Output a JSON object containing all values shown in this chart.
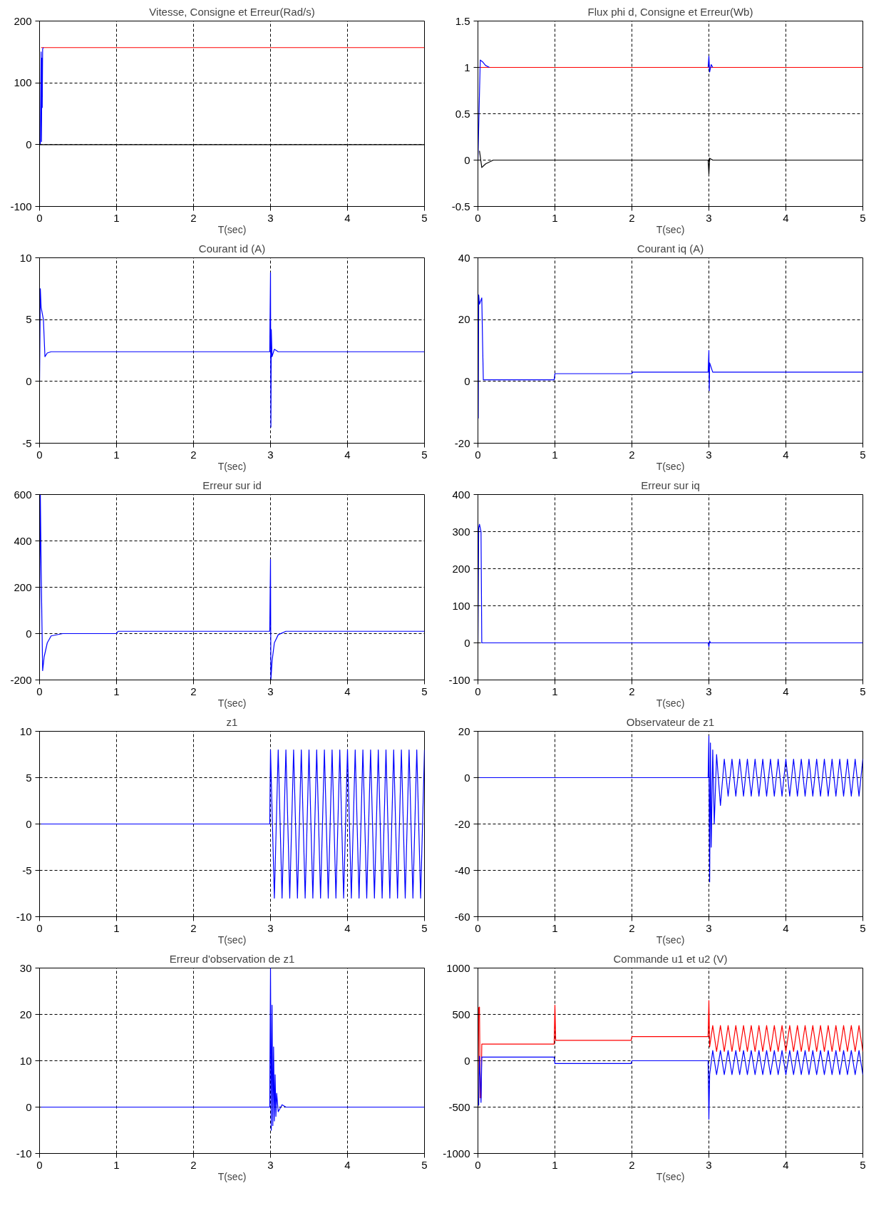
{
  "chart_data": [
    {
      "type": "line",
      "title": "Vitesse, Consigne et Erreur(Rad/s)",
      "xlabel": "T(sec)",
      "xlim": [
        0,
        5
      ],
      "xticks": [
        0,
        1,
        2,
        3,
        4,
        5
      ],
      "ylim": [
        -100,
        200
      ],
      "yticks": [
        -100,
        0,
        100,
        200
      ],
      "grid": true,
      "series": [
        {
          "color": "#ff0000",
          "x": [
            0.02,
            5
          ],
          "values": [
            157,
            157
          ]
        },
        {
          "color": "#000000",
          "x": [
            0,
            5
          ],
          "values": [
            0,
            0
          ]
        },
        {
          "color": "#0000ff",
          "x": [
            0.01,
            0.02,
            0.025,
            0.03,
            0.035,
            0.04,
            0.05
          ],
          "values": [
            0,
            150,
            5,
            140,
            60,
            155,
            157
          ]
        }
      ]
    },
    {
      "type": "line",
      "title": "Flux phi d, Consigne et Erreur(Wb)",
      "xlabel": "T(sec)",
      "xlim": [
        0,
        5
      ],
      "xticks": [
        0,
        1,
        2,
        3,
        4,
        5
      ],
      "ylim": [
        -0.5,
        1.5
      ],
      "yticks": [
        -0.5,
        0,
        0.5,
        1,
        1.5
      ],
      "grid": true,
      "series": [
        {
          "color": "#ff0000",
          "x": [
            0,
            5
          ],
          "values": [
            1,
            1
          ]
        },
        {
          "color": "#0000ff",
          "x": [
            0,
            0.03,
            0.06,
            0.1,
            0.15,
            1,
            2.99,
            3.0,
            3.01,
            3.03,
            3.05
          ],
          "values": [
            0,
            1.08,
            1.06,
            1.02,
            1.0,
            null,
            1,
            1.12,
            0.95,
            1.03,
            1.0
          ]
        },
        {
          "color": "#000000",
          "x": [
            0.02,
            0.05,
            0.1,
            0.2,
            2.99,
            3.0,
            3.01,
            3.05,
            5
          ],
          "values": [
            0.1,
            -0.08,
            -0.04,
            0,
            0,
            -0.15,
            0.02,
            0,
            0
          ]
        }
      ]
    },
    {
      "type": "line",
      "title": "Courant id (A)",
      "xlabel": "T(sec)",
      "xlim": [
        0,
        5
      ],
      "xticks": [
        0,
        1,
        2,
        3,
        4,
        5
      ],
      "ylim": [
        -5,
        10
      ],
      "yticks": [
        -5,
        0,
        5,
        10
      ],
      "grid": true,
      "series": [
        {
          "color": "#0000ff",
          "x": [
            0,
            0.01,
            0.02,
            0.05,
            0.07,
            0.1,
            0.15,
            2.99,
            3.0,
            3.005,
            3.01,
            3.02,
            3.05,
            3.1,
            5
          ],
          "values": [
            0,
            7.5,
            6,
            5,
            2,
            2.3,
            2.4,
            2.4,
            8.8,
            -3.7,
            4.2,
            2,
            2.6,
            2.4,
            2.4
          ]
        }
      ]
    },
    {
      "type": "line",
      "title": "Courant iq (A)",
      "xlabel": "T(sec)",
      "xlim": [
        0,
        5
      ],
      "xticks": [
        0,
        1,
        2,
        3,
        4,
        5
      ],
      "ylim": [
        -20,
        40
      ],
      "yticks": [
        -20,
        0,
        20,
        40
      ],
      "grid": true,
      "series": [
        {
          "color": "#0000ff",
          "x": [
            0.004,
            0.01,
            0.02,
            0.05,
            0.06,
            0.07,
            0.1,
            0.99,
            1.0,
            2.0,
            2.01,
            2.99,
            3.0,
            3.005,
            3.01,
            3.05,
            3.1,
            5
          ],
          "values": [
            -12,
            28,
            25,
            27,
            13,
            0.5,
            0.5,
            0.5,
            2.5,
            2.5,
            3,
            3,
            10,
            -3,
            6,
            3,
            3,
            3
          ]
        }
      ]
    },
    {
      "type": "line",
      "title": "Erreur sur id",
      "xlabel": "T(sec)",
      "xlim": [
        0,
        5
      ],
      "xticks": [
        0,
        1,
        2,
        3,
        4,
        5
      ],
      "ylim": [
        -200,
        600
      ],
      "yticks": [
        -200,
        0,
        200,
        400,
        600
      ],
      "grid": true,
      "series": [
        {
          "color": "#0000ff",
          "x": [
            0,
            0.01,
            0.02,
            0.04,
            0.06,
            0.1,
            0.15,
            0.3,
            1.0,
            1.02,
            2.99,
            3.0,
            3.005,
            3.02,
            3.05,
            3.1,
            3.2,
            5
          ],
          "values": [
            0,
            600,
            300,
            -160,
            -100,
            -40,
            -10,
            0,
            0,
            10,
            10,
            320,
            -200,
            -120,
            -40,
            -5,
            10,
            10
          ]
        }
      ]
    },
    {
      "type": "line",
      "title": "Erreur sur iq",
      "xlabel": "T(sec)",
      "xlim": [
        0,
        5
      ],
      "xticks": [
        0,
        1,
        2,
        3,
        4,
        5
      ],
      "ylim": [
        -100,
        400
      ],
      "yticks": [
        -100,
        0,
        100,
        200,
        300,
        400
      ],
      "grid": true,
      "series": [
        {
          "color": "#0000ff",
          "x": [
            0,
            0.01,
            0.02,
            0.04,
            0.05,
            0.06,
            2.99,
            3.0,
            3.01,
            3.02,
            5
          ],
          "values": [
            0,
            310,
            320,
            300,
            0,
            0,
            0,
            -10,
            5,
            0,
            0
          ]
        }
      ]
    },
    {
      "type": "line",
      "title": "z1",
      "xlabel": "T(sec)",
      "xlim": [
        0,
        5
      ],
      "xticks": [
        0,
        1,
        2,
        3,
        4,
        5
      ],
      "ylim": [
        -10,
        10
      ],
      "yticks": [
        -10,
        -5,
        0,
        5,
        10
      ],
      "grid": true,
      "series": [
        {
          "color": "#0000ff",
          "x": [
            0,
            2.99,
            3.0,
            3.05,
            3.1,
            3.15,
            3.2,
            3.25,
            3.3,
            3.35,
            3.4,
            3.45,
            3.5,
            3.55,
            3.6,
            3.65,
            3.7,
            3.75,
            3.8,
            3.85,
            3.9,
            3.95,
            4.0,
            4.05,
            4.1,
            4.15,
            4.2,
            4.25,
            4.3,
            4.35,
            4.4,
            4.45,
            4.5,
            4.55,
            4.6,
            4.65,
            4.7,
            4.75,
            4.8,
            4.85,
            4.9,
            4.95,
            5.0
          ],
          "values": [
            0,
            0,
            8,
            -8,
            8,
            -8,
            8,
            -8,
            8,
            -8,
            8,
            -8,
            8,
            -8,
            8,
            -8,
            8,
            -8,
            8,
            -8,
            8,
            -8,
            8,
            -8,
            8,
            -8,
            8,
            -8,
            8,
            -8,
            8,
            -8,
            8,
            -8,
            8,
            -8,
            8,
            -8,
            8,
            -8,
            8,
            -8,
            8
          ]
        }
      ]
    },
    {
      "type": "line",
      "title": "Observateur de z1",
      "xlabel": "T(sec)",
      "xlim": [
        0,
        5
      ],
      "xticks": [
        0,
        1,
        2,
        3,
        4,
        5
      ],
      "ylim": [
        -60,
        20
      ],
      "yticks": [
        -60,
        -40,
        -20,
        0,
        20
      ],
      "grid": true,
      "series": [
        {
          "color": "#0000ff",
          "x": [
            0,
            2.99,
            3.0,
            3.01,
            3.02,
            3.03,
            3.05,
            3.07,
            3.1,
            3.15,
            3.2,
            3.25,
            3.3,
            3.35,
            3.4,
            3.45,
            3.5,
            3.55,
            3.6,
            3.65,
            3.7,
            3.75,
            3.8,
            3.85,
            3.9,
            3.95,
            4.0,
            4.05,
            4.1,
            4.15,
            4.2,
            4.25,
            4.3,
            4.35,
            4.4,
            4.45,
            4.5,
            4.55,
            4.6,
            4.65,
            4.7,
            4.75,
            4.8,
            4.85,
            4.9,
            4.95,
            5.0
          ],
          "values": [
            0,
            0,
            18,
            -45,
            15,
            -30,
            12,
            -20,
            10,
            -12,
            8,
            -8,
            8,
            -8,
            8,
            -8,
            8,
            -8,
            8,
            -8,
            8,
            -8,
            8,
            -8,
            8,
            -8,
            8,
            -8,
            8,
            -8,
            8,
            -8,
            8,
            -8,
            8,
            -8,
            8,
            -8,
            8,
            -8,
            8,
            -8,
            8,
            -8,
            8,
            -8,
            8
          ]
        }
      ]
    },
    {
      "type": "line",
      "title": "Erreur d'observation de z1",
      "xlabel": "T(sec)",
      "xlim": [
        0,
        5
      ],
      "xticks": [
        0,
        1,
        2,
        3,
        4,
        5
      ],
      "ylim": [
        -10,
        30
      ],
      "yticks": [
        -10,
        0,
        10,
        20,
        30
      ],
      "grid": true,
      "series": [
        {
          "color": "#0000ff",
          "x": [
            0,
            2.99,
            3.0,
            3.01,
            3.02,
            3.03,
            3.04,
            3.05,
            3.06,
            3.07,
            3.08,
            3.1,
            3.15,
            3.2,
            5
          ],
          "values": [
            0,
            0,
            30,
            -5,
            22,
            -4,
            13,
            -3,
            7,
            -2,
            3,
            -1,
            0.5,
            0,
            0
          ]
        }
      ]
    },
    {
      "type": "line",
      "title": "Commande u1 et u2 (V)",
      "xlabel": "T(sec)",
      "xlim": [
        0,
        5
      ],
      "xticks": [
        0,
        1,
        2,
        3,
        4,
        5
      ],
      "ylim": [
        -1000,
        1000
      ],
      "yticks": [
        -1000,
        -500,
        0,
        500,
        1000
      ],
      "grid": true,
      "series": [
        {
          "color": "#ff0000",
          "x": [
            0,
            0.01,
            0.02,
            0.03,
            0.04,
            0.05,
            0.99,
            1.0,
            1.01,
            1.99,
            2.0,
            2.99,
            3.0,
            3.01,
            3.05,
            3.1,
            3.15,
            3.2,
            3.25,
            3.3,
            3.35,
            3.4,
            3.45,
            3.5,
            3.55,
            3.6,
            3.65,
            3.7,
            3.75,
            3.8,
            3.85,
            3.9,
            3.95,
            4.0,
            4.05,
            4.1,
            4.15,
            4.2,
            4.25,
            4.3,
            4.35,
            4.4,
            4.45,
            4.5,
            4.55,
            4.6,
            4.65,
            4.7,
            4.75,
            4.8,
            4.85,
            4.9,
            4.95,
            5.0
          ],
          "values": [
            -500,
            570,
            580,
            -400,
            -400,
            180,
            180,
            600,
            220,
            220,
            260,
            260,
            650,
            150,
            380,
            100,
            380,
            100,
            380,
            100,
            380,
            100,
            380,
            100,
            380,
            100,
            380,
            100,
            380,
            100,
            380,
            100,
            380,
            100,
            380,
            100,
            380,
            100,
            380,
            100,
            380,
            100,
            380,
            100,
            380,
            100,
            380,
            100,
            380,
            100,
            380,
            100,
            380,
            100
          ]
        },
        {
          "color": "#0000ff",
          "x": [
            0,
            0.01,
            0.02,
            0.04,
            0.05,
            0.99,
            1.0,
            1.99,
            2.0,
            2.99,
            3.0,
            3.01,
            3.05,
            3.1,
            3.15,
            3.2,
            3.25,
            3.3,
            3.35,
            3.4,
            3.45,
            3.5,
            3.55,
            3.6,
            3.65,
            3.7,
            3.75,
            3.8,
            3.85,
            3.9,
            3.95,
            4.0,
            4.05,
            4.1,
            4.15,
            4.2,
            4.25,
            4.3,
            4.35,
            4.4,
            4.45,
            4.5,
            4.55,
            4.6,
            4.65,
            4.7,
            4.75,
            4.8,
            4.85,
            4.9,
            4.95,
            5.0
          ],
          "values": [
            -450,
            -480,
            50,
            -450,
            40,
            40,
            -30,
            -30,
            0,
            0,
            -630,
            -150,
            110,
            -150,
            110,
            -150,
            110,
            -150,
            110,
            -150,
            110,
            -150,
            110,
            -150,
            110,
            -150,
            110,
            -150,
            110,
            -150,
            110,
            -150,
            110,
            -150,
            110,
            -150,
            110,
            -150,
            110,
            -150,
            110,
            -150,
            110,
            -150,
            110,
            -150,
            110,
            -150,
            110,
            -150,
            110,
            -150
          ]
        }
      ]
    }
  ]
}
